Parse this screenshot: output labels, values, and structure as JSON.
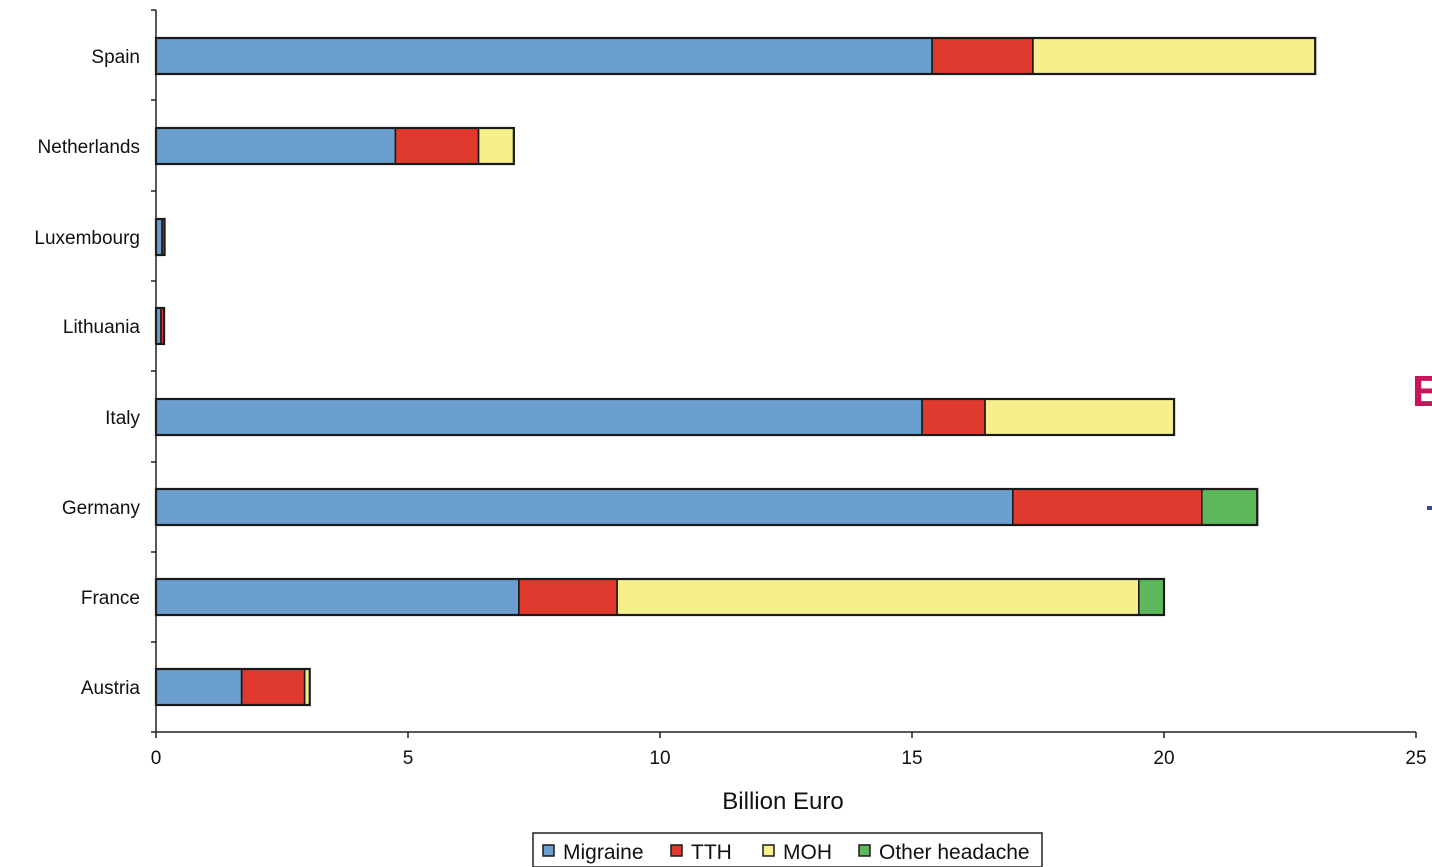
{
  "chart_data": {
    "type": "bar",
    "orientation": "horizontal",
    "stacked": true,
    "categories": [
      "Spain",
      "Netherlands",
      "Luxembourg",
      "Lithuania",
      "Italy",
      "Germany",
      "France",
      "Austria"
    ],
    "series": [
      {
        "name": "Migraine",
        "color": "#6b9fcf",
        "values": [
          15.4,
          4.75,
          0.12,
          0.1,
          15.2,
          17.0,
          7.2,
          1.7
        ]
      },
      {
        "name": "TTH",
        "color": "#e03a2f",
        "values": [
          2.0,
          1.65,
          0.05,
          0.06,
          1.25,
          3.75,
          1.95,
          1.25
        ]
      },
      {
        "name": "MOH",
        "color": "#f5f08c",
        "values": [
          5.6,
          0.7,
          0.0,
          0.0,
          3.75,
          0.0,
          10.35,
          0.1
        ]
      },
      {
        "name": "Other headache",
        "color": "#5cb85a",
        "values": [
          0.0,
          0.0,
          0.0,
          0.0,
          0.0,
          1.1,
          0.5,
          0.0
        ]
      }
    ],
    "xlabel": "Billion Euro",
    "ylabel": "",
    "xlim": [
      0,
      25
    ],
    "xticks": [
      "0",
      "5",
      "10",
      "15",
      "20",
      "25"
    ],
    "grid": false,
    "legend_position": "bottom"
  },
  "side_text": "E"
}
